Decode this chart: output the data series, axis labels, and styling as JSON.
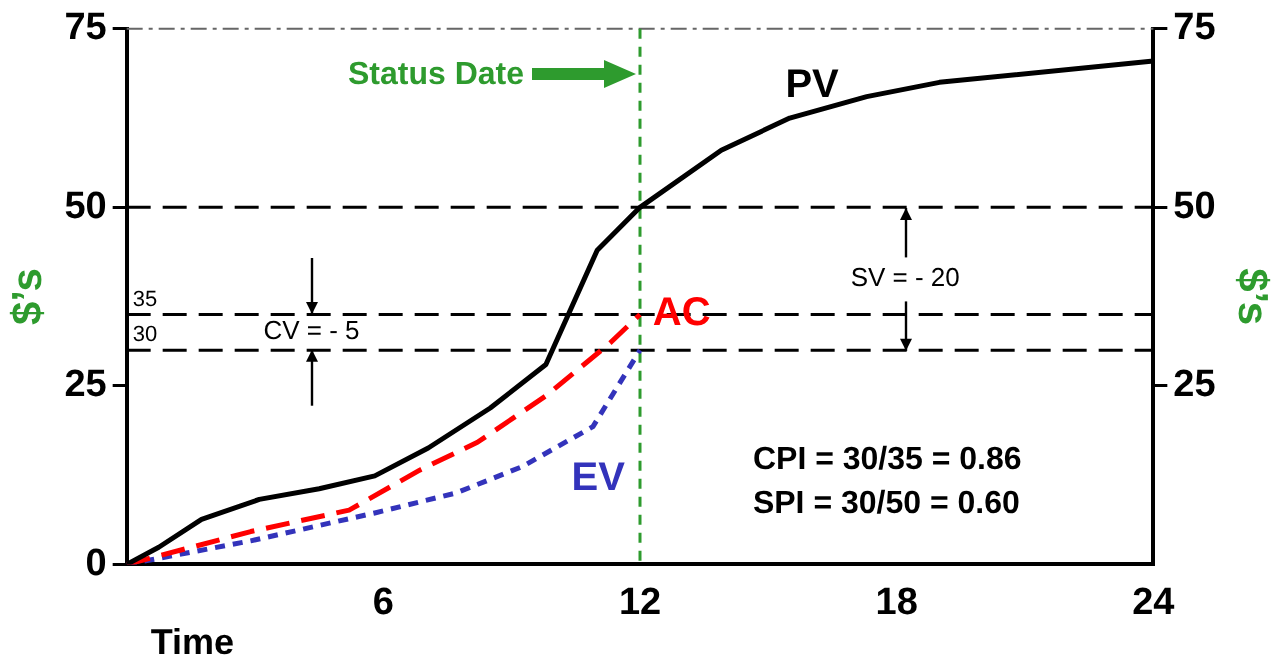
{
  "chart_data": {
    "type": "line",
    "ylabel": "$’s",
    "y2label": "$’s",
    "xlabel": "Time",
    "xlim": [
      0,
      24
    ],
    "xticks": [
      6,
      12,
      18,
      24
    ],
    "ylim": [
      0,
      75
    ],
    "yticks": [
      0,
      25,
      50,
      75
    ],
    "y2lim": [
      0,
      75
    ],
    "y2ticks": [
      25,
      50,
      75
    ],
    "series": [
      {
        "name": "PV",
        "color": "#000000",
        "line_style": "solid",
        "x": [
          0,
          0.75,
          1.75,
          3.1,
          4.5,
          5.8,
          7.05,
          8.5,
          9.8,
          11.0,
          12,
          13.9,
          15.5,
          17.3,
          19,
          24
        ],
        "values": [
          0,
          2.4,
          6.3,
          9.1,
          10.6,
          12.4,
          16.3,
          21.9,
          28,
          44,
          50,
          58,
          62.5,
          65.5,
          67.5,
          70.5
        ]
      },
      {
        "name": "AC",
        "color": "#ff0000",
        "line_style": "dashed",
        "x": [
          0,
          2.9,
          5.2,
          6.85,
          8.2,
          9.8,
          11.3,
          12
        ],
        "values": [
          0,
          4.6,
          7.6,
          13.2,
          17.1,
          23.6,
          31,
          35
        ]
      },
      {
        "name": "EV",
        "color": "#3333bb",
        "line_style": "dotted",
        "x": [
          0,
          2.9,
          5.8,
          7.7,
          9.25,
          10.9,
          12
        ],
        "values": [
          0,
          3.3,
          7.2,
          10,
          13.7,
          19.3,
          30
        ]
      }
    ],
    "ref_lines": [
      {
        "axis": "x",
        "value": 12,
        "label": "Status Date",
        "color": "#2e9b2e",
        "line_style": "dotted"
      },
      {
        "axis": "y",
        "value": 50,
        "color": "#000000",
        "line_style": "dashed"
      },
      {
        "axis": "y",
        "value": 35,
        "label": "35",
        "color": "#000000",
        "line_style": "dashed"
      },
      {
        "axis": "y",
        "value": 30,
        "label": "30",
        "color": "#000000",
        "line_style": "dashed"
      }
    ],
    "annotations": [
      "CV = - 5",
      {
        "text": "SV = - 20",
        "x": 18.2,
        "y": 50
      },
      "CPI = 30/35 = 0.86",
      "SPI = 30/50 = 0.60"
    ],
    "grid": false,
    "legend": false,
    "marker": "none"
  }
}
